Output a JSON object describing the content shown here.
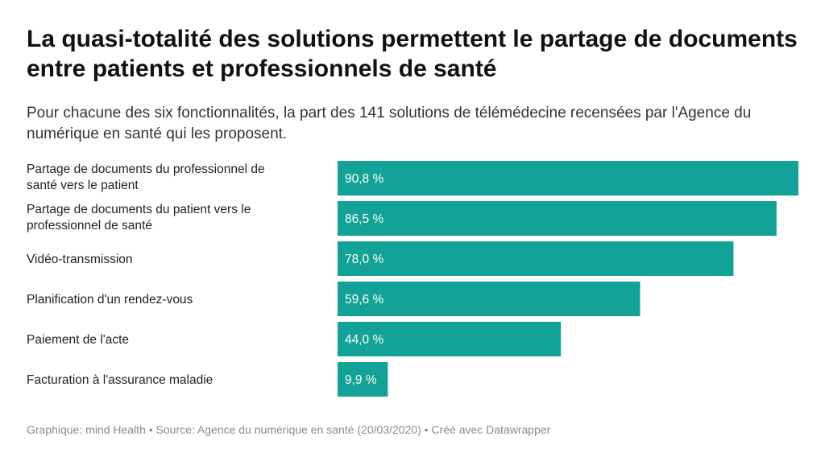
{
  "chart_data": {
    "type": "bar",
    "orientation": "horizontal",
    "title": "La quasi-totalité des solutions permettent le partage de documents entre patients et professionnels de santé",
    "subtitle": "Pour chacune des six fonctionnalités, la part des 141 solutions de télémédecine recensées par l'Agence du numérique en santé qui les proposent.",
    "categories": [
      [
        "Partage de documents du professionnel de",
        "santé vers le patient"
      ],
      [
        "Partage de documents du patient vers le",
        "professionnel de santé"
      ],
      [
        "Vidéo-transmission"
      ],
      [
        "Planification d'un rendez-vous"
      ],
      [
        "Paiement de l'acte"
      ],
      [
        "Facturation à l'assurance maladie"
      ]
    ],
    "values": [
      90.8,
      86.5,
      78.0,
      59.6,
      44.0,
      9.9
    ],
    "value_labels": [
      "90,8 %",
      "86,5 %",
      "78,0 %",
      "59,6 %",
      "44,0 %",
      "9,9 %"
    ],
    "xlim": [
      0,
      90.8
    ],
    "bar_color": "#12a297",
    "grid": false,
    "legend": "none"
  },
  "footer": {
    "text": "Graphique: mind Health • Source: Agence du numérique en santé (20/03/2020) • Créé avec Datawrapper"
  }
}
